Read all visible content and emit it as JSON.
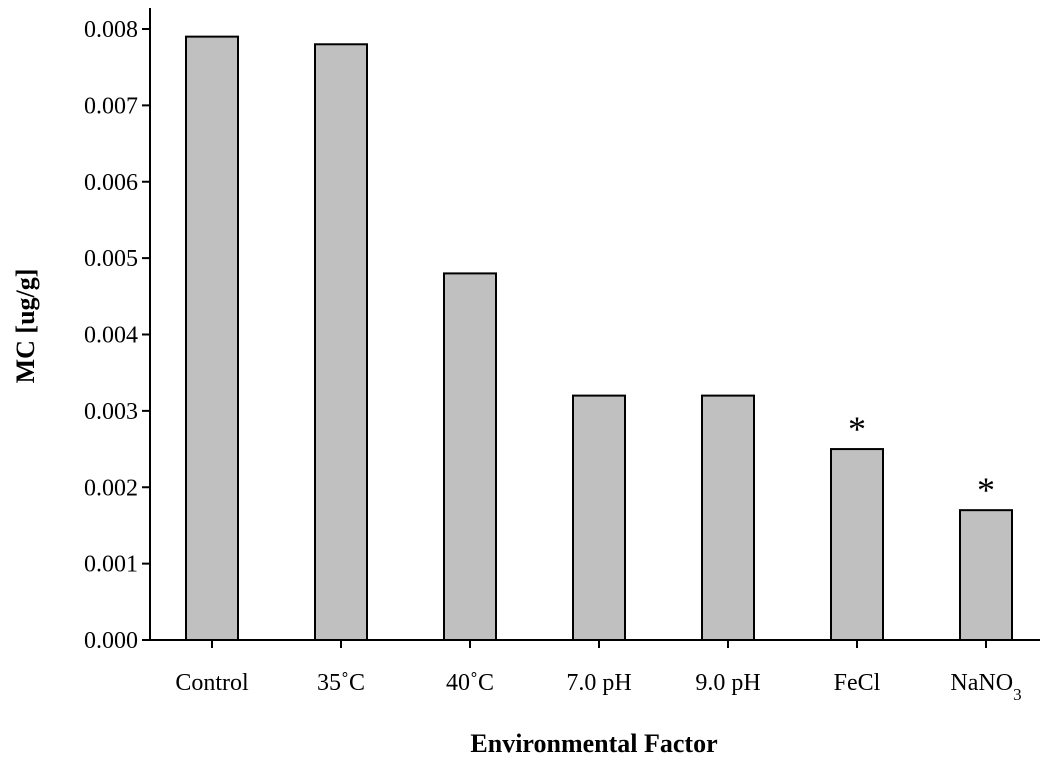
{
  "chart_data": {
    "type": "bar",
    "categories": [
      "Control",
      "35˚C",
      "40˚C",
      "7.0 pH",
      "9.0 pH",
      "FeCl",
      "NaNO3"
    ],
    "values": [
      0.0079,
      0.0078,
      0.0048,
      0.0032,
      0.0032,
      0.0025,
      0.0017
    ],
    "annotations": [
      "",
      "",
      "",
      "",
      "",
      "*",
      "*"
    ],
    "xlabel": "Environmental Factor",
    "ylabel": "MC [ug/g]",
    "ylim": [
      0,
      0.008
    ],
    "yticks": [
      "0.000",
      "0.001",
      "0.002",
      "0.003",
      "0.004",
      "0.005",
      "0.006",
      "0.007",
      "0.008"
    ],
    "grid": false,
    "legend": "none",
    "colors": {
      "bar_fill": "#c0c0c0",
      "bar_stroke": "#000000",
      "axis": "#000000"
    }
  }
}
